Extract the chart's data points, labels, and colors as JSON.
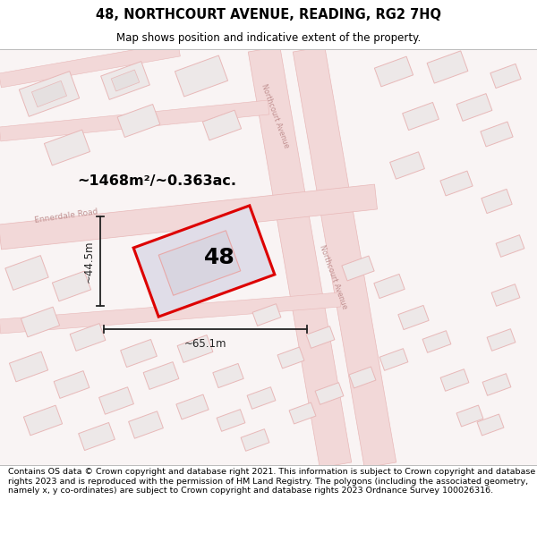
{
  "title": "48, NORTHCOURT AVENUE, READING, RG2 7HQ",
  "subtitle": "Map shows position and indicative extent of the property.",
  "footer": "Contains OS data © Crown copyright and database right 2021. This information is subject to Crown copyright and database rights 2023 and is reproduced with the permission of HM Land Registry. The polygons (including the associated geometry, namely x, y co-ordinates) are subject to Crown copyright and database rights 2023 Ordnance Survey 100026316.",
  "area_label": "~1468m²/~0.363ac.",
  "width_label": "~65.1m",
  "height_label": "~44.5m",
  "number_label": "48",
  "title_fontsize": 10.5,
  "subtitle_fontsize": 8.5,
  "footer_fontsize": 6.8,
  "map_bg": "#f9f4f4",
  "street_fill": "#f2d8d8",
  "block_fill": "#ede8e8",
  "block_edge": "#e8b8b8",
  "highlight_fill": "#e0dde8",
  "red_edge": "#dd0000",
  "inner_fill": "#d8d5e0",
  "inner_edge": "#e8a8a8",
  "road_label_color": "#c09090",
  "dim_color": "#222222"
}
